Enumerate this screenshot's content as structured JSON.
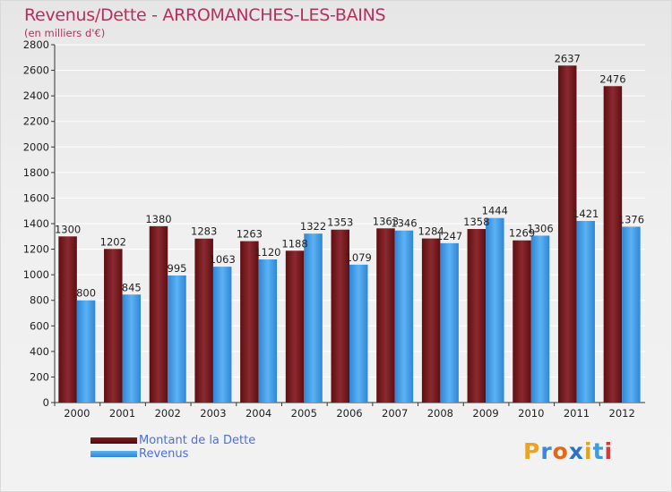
{
  "chart_data": {
    "type": "bar",
    "title": "Revenus/Dette - ARROMANCHES-LES-BAINS",
    "subtitle": "(en milliers d'€)",
    "categories": [
      "2000",
      "2001",
      "2002",
      "2003",
      "2004",
      "2005",
      "2006",
      "2007",
      "2008",
      "2009",
      "2010",
      "2011",
      "2012"
    ],
    "series": [
      {
        "name": "Montant de la Dette",
        "color": "#7a1b20",
        "values": [
          1300,
          1202,
          1380,
          1283,
          1263,
          1188,
          1353,
          1363,
          1284,
          1358,
          1269,
          2637,
          2476
        ]
      },
      {
        "name": "Revenus",
        "color": "#3d9be6",
        "values": [
          800,
          845,
          995,
          1063,
          1120,
          1322,
          1079,
          1346,
          1247,
          1444,
          1306,
          1421,
          1376
        ]
      }
    ],
    "ylim": [
      0,
      2800
    ],
    "yticks": [
      0,
      200,
      400,
      600,
      800,
      1000,
      1200,
      1400,
      1600,
      1800,
      2000,
      2200,
      2400,
      2600,
      2800
    ],
    "grid": true,
    "legend": "bottom-left"
  },
  "logo": {
    "letters": [
      "P",
      "r",
      "o",
      "x",
      "i",
      "t",
      "i"
    ],
    "colors": [
      "#e8a427",
      "#3e87d8",
      "#e06a1a",
      "#2b73c8",
      "#e0a520",
      "#3e9ad8",
      "#d8383c"
    ]
  }
}
